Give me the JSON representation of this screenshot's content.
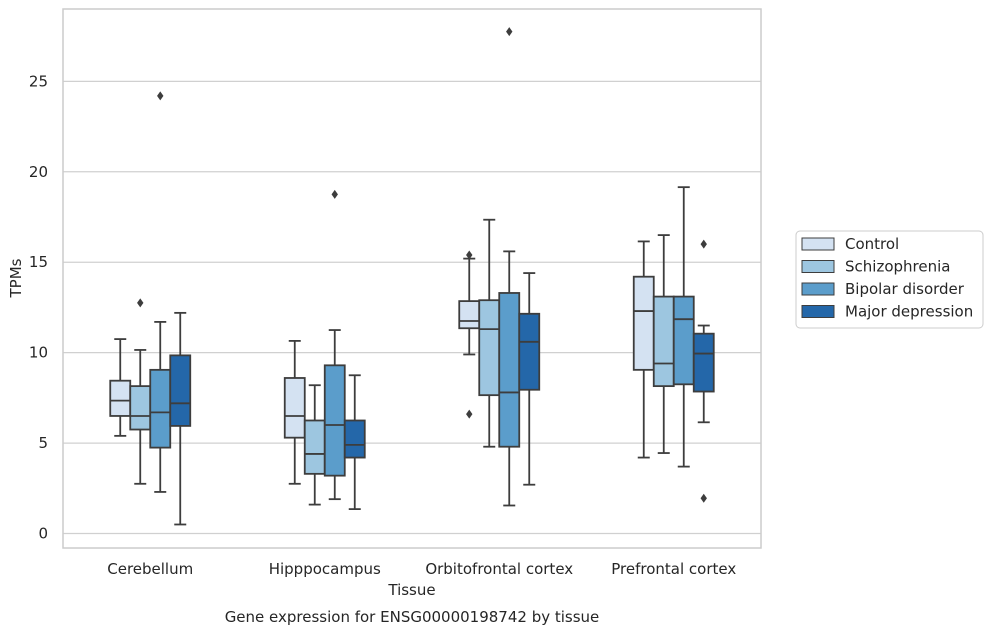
{
  "chart_data": {
    "type": "box",
    "xlabel": "Tissue",
    "ylabel": "TPMs",
    "caption": "Gene expression for ENSG00000198742 by tissue",
    "ylim": [
      -0.8,
      29.0
    ],
    "yticks": [
      0,
      5,
      10,
      15,
      20,
      25
    ],
    "grid": true,
    "legend_position": "right",
    "categories": [
      "Cerebellum",
      "Hipppocampus",
      "Orbitofrontal cortex",
      "Prefrontal cortex"
    ],
    "series": [
      {
        "name": "Control",
        "color": "#d4e2f2",
        "boxes": [
          {
            "whislo": 5.4,
            "q1": 6.5,
            "med": 7.35,
            "q3": 8.45,
            "whishi": 10.75,
            "fliers": []
          },
          {
            "whislo": 2.75,
            "q1": 5.3,
            "med": 6.5,
            "q3": 8.6,
            "whishi": 10.65,
            "fliers": []
          },
          {
            "whislo": 9.9,
            "q1": 11.35,
            "med": 11.75,
            "q3": 12.85,
            "whishi": 15.2,
            "fliers": [
              15.4,
              6.6
            ]
          },
          {
            "whislo": 4.2,
            "q1": 9.05,
            "med": 12.3,
            "q3": 14.2,
            "whishi": 16.15,
            "fliers": []
          }
        ]
      },
      {
        "name": "Schizophrenia",
        "color": "#9dc6e0",
        "boxes": [
          {
            "whislo": 2.75,
            "q1": 5.75,
            "med": 6.5,
            "q3": 8.15,
            "whishi": 10.15,
            "fliers": [
              12.75
            ]
          },
          {
            "whislo": 1.6,
            "q1": 3.3,
            "med": 4.4,
            "q3": 6.25,
            "whishi": 8.2,
            "fliers": []
          },
          {
            "whislo": 4.8,
            "q1": 7.65,
            "med": 11.3,
            "q3": 12.9,
            "whishi": 17.35,
            "fliers": []
          },
          {
            "whislo": 4.45,
            "q1": 8.15,
            "med": 9.4,
            "q3": 13.1,
            "whishi": 16.5,
            "fliers": []
          }
        ]
      },
      {
        "name": "Bipolar disorder",
        "color": "#5b9dcb",
        "boxes": [
          {
            "whislo": 2.3,
            "q1": 4.75,
            "med": 6.7,
            "q3": 9.05,
            "whishi": 11.7,
            "fliers": [
              24.2
            ]
          },
          {
            "whislo": 1.9,
            "q1": 3.2,
            "med": 6.0,
            "q3": 9.3,
            "whishi": 11.25,
            "fliers": [
              18.75
            ]
          },
          {
            "whislo": 1.55,
            "q1": 4.8,
            "med": 7.8,
            "q3": 13.3,
            "whishi": 15.6,
            "fliers": [
              27.75
            ]
          },
          {
            "whislo": 3.7,
            "q1": 8.25,
            "med": 11.85,
            "q3": 13.1,
            "whishi": 19.15,
            "fliers": []
          }
        ]
      },
      {
        "name": "Major depression",
        "color": "#2467a9",
        "boxes": [
          {
            "whislo": 0.5,
            "q1": 5.95,
            "med": 7.2,
            "q3": 9.85,
            "whishi": 12.2,
            "fliers": []
          },
          {
            "whislo": 1.35,
            "q1": 4.2,
            "med": 4.9,
            "q3": 6.25,
            "whishi": 8.75,
            "fliers": []
          },
          {
            "whislo": 2.7,
            "q1": 7.95,
            "med": 10.6,
            "q3": 12.15,
            "whishi": 14.4,
            "fliers": []
          },
          {
            "whislo": 6.15,
            "q1": 7.85,
            "med": 9.95,
            "q3": 11.05,
            "whishi": 11.5,
            "fliers": [
              16.0,
              1.95
            ]
          }
        ]
      }
    ]
  }
}
